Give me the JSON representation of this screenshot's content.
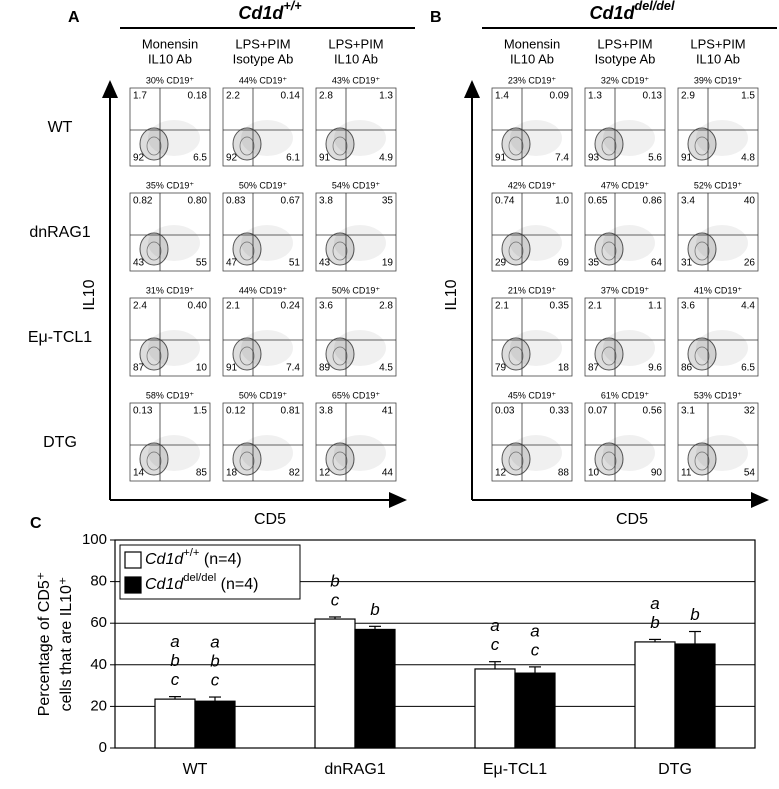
{
  "rows": [
    "WT",
    "dnRAG1",
    "Eμ-TCL1",
    "DTG"
  ],
  "panels": [
    {
      "letter": "A",
      "title": "Cd1d",
      "title_sup": "+/+",
      "columns": [
        [
          "Monensin",
          "IL10 Ab"
        ],
        [
          "LPS+PIM",
          "Isotype Ab"
        ],
        [
          "LPS+PIM",
          "IL10 Ab"
        ]
      ],
      "ylabel": "IL10",
      "xlabel": "CD5",
      "plots": [
        [
          {
            "pct": "30% CD19⁺",
            "q": [
              "1.7",
              "0.18",
              "92",
              "6.5"
            ]
          },
          {
            "pct": "44% CD19⁺",
            "q": [
              "2.2",
              "0.14",
              "92",
              "6.1"
            ]
          },
          {
            "pct": "43% CD19⁺",
            "q": [
              "2.8",
              "1.3",
              "91",
              "4.9"
            ]
          }
        ],
        [
          {
            "pct": "35% CD19⁺",
            "q": [
              "0.82",
              "0.80",
              "43",
              "55"
            ]
          },
          {
            "pct": "50% CD19⁺",
            "q": [
              "0.83",
              "0.67",
              "47",
              "51"
            ]
          },
          {
            "pct": "54% CD19⁺",
            "q": [
              "3.8",
              "35",
              "43",
              "19"
            ]
          }
        ],
        [
          {
            "pct": "31% CD19⁺",
            "q": [
              "2.4",
              "0.40",
              "87",
              "10"
            ]
          },
          {
            "pct": "44% CD19⁺",
            "q": [
              "2.1",
              "0.24",
              "91",
              "7.4"
            ]
          },
          {
            "pct": "50% CD19⁺",
            "q": [
              "3.6",
              "2.8",
              "89",
              "4.5"
            ]
          }
        ],
        [
          {
            "pct": "58% CD19⁺",
            "q": [
              "0.13",
              "1.5",
              "14",
              "85"
            ]
          },
          {
            "pct": "50% CD19⁺",
            "q": [
              "0.12",
              "0.81",
              "18",
              "82"
            ]
          },
          {
            "pct": "65% CD19⁺",
            "q": [
              "3.8",
              "41",
              "12",
              "44"
            ]
          }
        ]
      ]
    },
    {
      "letter": "B",
      "title": "Cd1d",
      "title_sup": "del/del",
      "columns": [
        [
          "Monensin",
          "IL10 Ab"
        ],
        [
          "LPS+PIM",
          "Isotype Ab"
        ],
        [
          "LPS+PIM",
          "IL10 Ab"
        ]
      ],
      "ylabel": "IL10",
      "xlabel": "CD5",
      "plots": [
        [
          {
            "pct": "23% CD19⁺",
            "q": [
              "1.4",
              "0.09",
              "91",
              "7.4"
            ]
          },
          {
            "pct": "32% CD19⁺",
            "q": [
              "1.3",
              "0.13",
              "93",
              "5.6"
            ]
          },
          {
            "pct": "39% CD19⁺",
            "q": [
              "2.9",
              "1.5",
              "91",
              "4.8"
            ]
          }
        ],
        [
          {
            "pct": "42% CD19⁺",
            "q": [
              "0.74",
              "1.0",
              "29",
              "69"
            ]
          },
          {
            "pct": "47% CD19⁺",
            "q": [
              "0.65",
              "0.86",
              "35",
              "64"
            ]
          },
          {
            "pct": "52% CD19⁺",
            "q": [
              "3.4",
              "40",
              "31",
              "26"
            ]
          }
        ],
        [
          {
            "pct": "21% CD19⁺",
            "q": [
              "2.1",
              "0.35",
              "79",
              "18"
            ]
          },
          {
            "pct": "37% CD19⁺",
            "q": [
              "2.1",
              "1.1",
              "87",
              "9.6"
            ]
          },
          {
            "pct": "41% CD19⁺",
            "q": [
              "3.6",
              "4.4",
              "86",
              "6.5"
            ]
          }
        ],
        [
          {
            "pct": "45% CD19⁺",
            "q": [
              "0.03",
              "0.33",
              "12",
              "88"
            ]
          },
          {
            "pct": "61% CD19⁺",
            "q": [
              "0.07",
              "0.56",
              "10",
              "90"
            ]
          },
          {
            "pct": "53% CD19⁺",
            "q": [
              "3.1",
              "32",
              "11",
              "54"
            ]
          }
        ]
      ]
    }
  ],
  "chart_data": {
    "type": "bar",
    "panel": "C",
    "ylabel": [
      "Percentage of CD5⁺",
      "cells that are IL10⁺"
    ],
    "categories": [
      "WT",
      "dnRAG1",
      "Eμ-TCL1",
      "DTG"
    ],
    "ylim": [
      0,
      100
    ],
    "yticks": [
      0,
      20,
      40,
      60,
      80,
      100
    ],
    "grid": true,
    "legend": "upper left",
    "series": [
      {
        "name": "Cd1d",
        "name_sup": "+/+",
        "name_suffix": " (n=4)",
        "color": "#ffffff",
        "values": [
          23.5,
          62,
          38,
          51
        ],
        "errors": [
          1.2,
          1,
          3.5,
          1.2
        ],
        "letters": [
          [
            "a",
            "b",
            "c"
          ],
          [
            "b",
            "c"
          ],
          [
            "a",
            "c"
          ],
          [
            "a",
            "b"
          ]
        ]
      },
      {
        "name": "Cd1d",
        "name_sup": "del/del",
        "name_suffix": " (n=4)",
        "color": "#000000",
        "values": [
          22.5,
          57,
          36,
          50
        ],
        "errors": [
          2,
          1.5,
          3,
          6
        ],
        "letters": [
          [
            "a",
            "b",
            "c"
          ],
          [
            "b"
          ],
          [
            "a",
            "c"
          ],
          [
            "b"
          ]
        ]
      }
    ]
  }
}
